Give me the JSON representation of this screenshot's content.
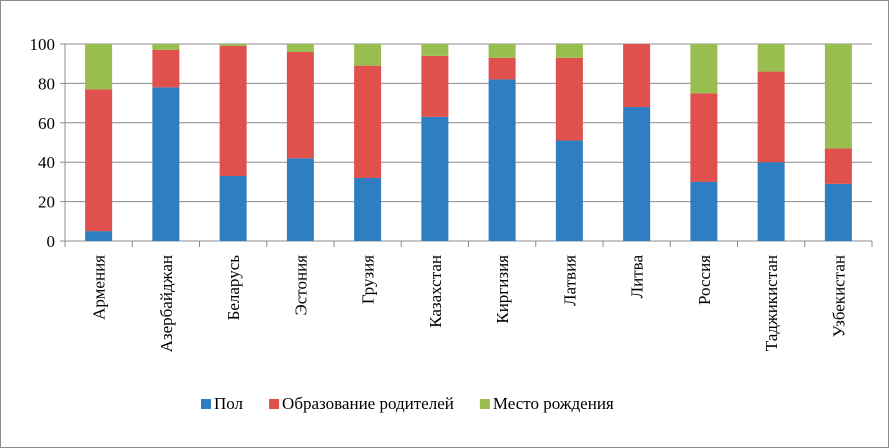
{
  "chart_data": {
    "type": "bar",
    "stacked": true,
    "categories": [
      "Армения",
      "Азербайджан",
      "Беларусь",
      "Эстония",
      "Грузия",
      "Казахстан",
      "Киргизия",
      "Латвия",
      "Литва",
      "Россия",
      "Таджикистан",
      "Узбекистан"
    ],
    "series": [
      {
        "name": "Пол",
        "color": "#2E7EC1",
        "values": [
          5,
          78,
          33,
          42,
          32,
          63,
          82,
          51,
          68,
          30,
          40,
          29
        ]
      },
      {
        "name": "Образование родителей",
        "color": "#E0504D",
        "values": [
          72,
          19,
          66,
          54,
          57,
          31,
          11,
          42,
          32,
          45,
          46,
          18
        ]
      },
      {
        "name": "Место рождения",
        "color": "#97BE4E",
        "values": [
          23,
          3,
          1,
          4,
          11,
          6,
          7,
          7,
          0,
          25,
          14,
          53
        ]
      }
    ],
    "ylim": [
      0,
      100
    ],
    "yticks": [
      "0",
      "20",
      "40",
      "60",
      "80",
      "100"
    ],
    "grid": true,
    "legend_position": "bottom"
  }
}
